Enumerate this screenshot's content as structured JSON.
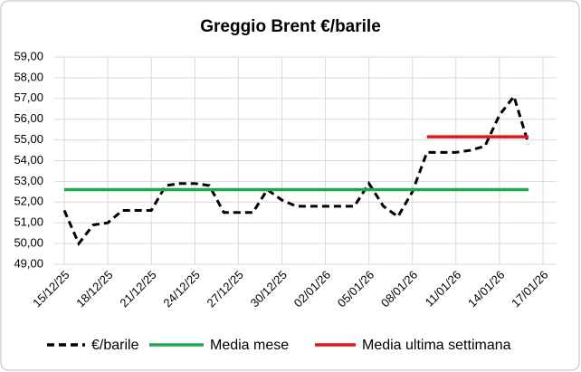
{
  "chart_data": {
    "type": "line",
    "title": "Greggio Brent €/barile",
    "categories": [
      "15/12/25",
      null,
      null,
      "18/12/25",
      null,
      null,
      "21/12/25",
      null,
      null,
      "24/12/25",
      null,
      null,
      "27/12/25",
      null,
      null,
      "30/12/25",
      null,
      null,
      "02/01/26",
      null,
      null,
      "05/01/26",
      null,
      null,
      "08/01/26",
      null,
      null,
      "11/01/26",
      null,
      null,
      "14/01/26",
      null,
      null,
      "17/01/26"
    ],
    "series": [
      {
        "name": "€/barile",
        "color": "#000000",
        "style": "dashed",
        "values": [
          51.6,
          50.0,
          50.9,
          51.0,
          51.6,
          51.6,
          51.6,
          52.8,
          52.9,
          52.9,
          52.8,
          51.5,
          51.5,
          51.5,
          52.6,
          52.1,
          51.8,
          51.8,
          51.8,
          51.8,
          51.8,
          52.9,
          51.8,
          51.3,
          52.5,
          54.4,
          54.4,
          54.4,
          54.5,
          54.7,
          56.2,
          57.1,
          54.8,
          null
        ]
      },
      {
        "name": "Media mese",
        "color": "#1fa84f",
        "style": "solid",
        "values": [
          52.6,
          52.6,
          52.6,
          52.6,
          52.6,
          52.6,
          52.6,
          52.6,
          52.6,
          52.6,
          52.6,
          52.6,
          52.6,
          52.6,
          52.6,
          52.6,
          52.6,
          52.6,
          52.6,
          52.6,
          52.6,
          52.6,
          52.6,
          52.6,
          52.6,
          52.6,
          52.6,
          52.6,
          52.6,
          52.6,
          52.6,
          52.6,
          52.6,
          null
        ]
      },
      {
        "name": "Media ultima settimana",
        "color": "#e3161c",
        "style": "solid",
        "values": [
          null,
          null,
          null,
          null,
          null,
          null,
          null,
          null,
          null,
          null,
          null,
          null,
          null,
          null,
          null,
          null,
          null,
          null,
          null,
          null,
          null,
          null,
          null,
          null,
          null,
          55.15,
          55.15,
          55.15,
          55.15,
          55.15,
          55.15,
          55.15,
          55.15,
          null
        ]
      }
    ],
    "ylim": [
      49,
      59
    ],
    "yticks": [
      {
        "value": 49,
        "label": "49,00"
      },
      {
        "value": 50,
        "label": "50,00"
      },
      {
        "value": 51,
        "label": "51,00"
      },
      {
        "value": 52,
        "label": "52,00"
      },
      {
        "value": 53,
        "label": "53,00"
      },
      {
        "value": 54,
        "label": "54,00"
      },
      {
        "value": 55,
        "label": "55,00"
      },
      {
        "value": 56,
        "label": "56,00"
      },
      {
        "value": 57,
        "label": "57,00"
      },
      {
        "value": 58,
        "label": "58,00"
      },
      {
        "value": 59,
        "label": "59,00"
      }
    ],
    "grid": true,
    "legend": "bottom"
  }
}
